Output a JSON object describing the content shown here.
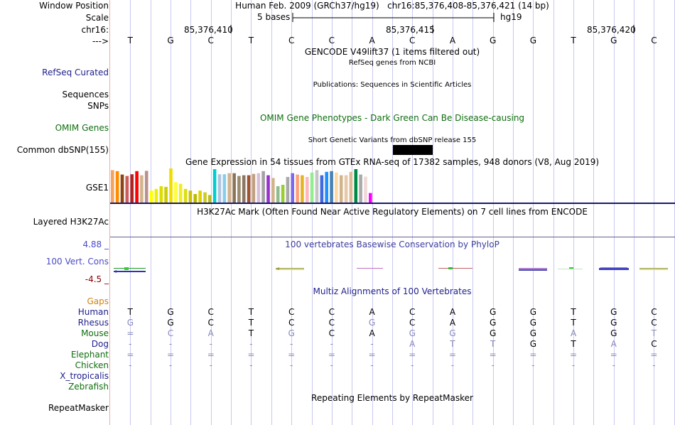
{
  "colors": {
    "label_blue": "#1e1e8c",
    "label_green": "#0f6e0f",
    "gaps_orange": "#d08010",
    "red_label": "#8b0000",
    "conservation_blue": "#4a4ac8",
    "rule_navy": "#191970",
    "grid_line": "#c8c8f0"
  },
  "header": {
    "window_position_label": "Window Position",
    "window_position_value": "Human Feb. 2009 (GRCh37/hg19)   chr16:85,376,408-85,376,421 (14 bp)",
    "scale_label": "Scale",
    "scale_value": "5 bases",
    "scale_db": "hg19",
    "chrom_label": "chr16:",
    "positions": [
      "85,376,410",
      "85,376,415",
      "85,376,420"
    ],
    "strand_label": "--->",
    "bases": [
      "T",
      "G",
      "C",
      "T",
      "C",
      "C",
      "A",
      "C",
      "A",
      "G",
      "G",
      "T",
      "G",
      "C"
    ]
  },
  "tracks": {
    "gencode_title": "GENCODE V49lift37 (1 items filtered out)",
    "refseq_label": "RefSeq Curated",
    "refseq_title": "RefSeq genes from NCBI",
    "sequences_label": "Sequences",
    "snps_label": "SNPs",
    "publications_title": "Publications: Sequences in Scientific Articles",
    "omim_title": "OMIM Gene Phenotypes - Dark Green Can Be Disease-causing",
    "omim_label": "OMIM Genes",
    "dbsnp_title": "Short Genetic Variants from dbSNP release 155",
    "dbsnp_label": "Common dbSNP(155)",
    "gtex_title": "Gene Expression in 54 tissues from GTEx RNA-seq of 17382 samples, 948 donors (V8, Aug 2019)",
    "gtex_label": "GSE1",
    "h3k27ac_title": "H3K27Ac Mark (Often Found Near Active Regulatory Elements) on 7 cell lines from ENCODE",
    "h3k27ac_label": "Layered H3K27Ac",
    "phylop_title": "100 vertebrates Basewise Conservation by PhyloP",
    "phylop_label": "100 Vert. Cons",
    "phylop_max": "4.88 _",
    "phylop_min": "-4.5 _",
    "multiz_title": "Multiz Alignments of 100 Vertebrates",
    "gaps_label": "Gaps",
    "repeat_title": "Repeating Elements by RepeatMasker",
    "repeat_label": "RepeatMasker"
  },
  "gtex_values": [
    0.95,
    0.92,
    0.82,
    0.78,
    0.83,
    0.92,
    0.8,
    0.93,
    0.35,
    0.4,
    0.48,
    0.46,
    1.0,
    0.6,
    0.55,
    0.4,
    0.35,
    0.25,
    0.35,
    0.3,
    0.22,
    0.98,
    0.83,
    0.83,
    0.86,
    0.86,
    0.78,
    0.8,
    0.8,
    0.84,
    0.86,
    0.92,
    0.8,
    0.72,
    0.48,
    0.52,
    0.75,
    0.86,
    0.82,
    0.8,
    0.75,
    0.88,
    0.95,
    0.8,
    0.9,
    0.92,
    0.88,
    0.8,
    0.8,
    0.9,
    0.98,
    0.82,
    0.76,
    0.28
  ],
  "gtex_colors": [
    "#f4a460",
    "#ff8c00",
    "#8b4513",
    "#cd5c5c",
    "#b22222",
    "#ff0000",
    "#d2b48c",
    "#bc8f8f",
    "#ffff00",
    "#eeee00",
    "#dddd00",
    "#cdcd00",
    "#eedd00",
    "#ffff33",
    "#eeee22",
    "#dddd11",
    "#ccc000",
    "#bbbb00",
    "#ddd000",
    "#cccc22",
    "#bbbb22",
    "#00ced1",
    "#b0c4de",
    "#87ceeb",
    "#d2b48c",
    "#8b7355",
    "#9c8b6e",
    "#8b7765",
    "#a0522d",
    "#c0a080",
    "#d8bfd8",
    "#a3a3a3",
    "#9932cc",
    "#d2b48c",
    "#8fbc8f",
    "#9acd32",
    "#a9a9a9",
    "#7b68ee",
    "#ffa07a",
    "#e6b422",
    "#ffb6c1",
    "#90ee90",
    "#c5c5c5",
    "#4169e1",
    "#1e90ff",
    "#4682b4",
    "#ffd7a0",
    "#d2b48c",
    "#e8c8a8",
    "#ddbb99",
    "#008b45",
    "#aaaaaa",
    "#f0d8d8",
    "#ff00ff"
  ],
  "alignment": {
    "species": [
      "Human",
      "Rhesus",
      "Mouse",
      "Dog",
      "Elephant",
      "Chicken",
      "X_tropicalis",
      "Zebrafish"
    ],
    "species_colors": [
      "#1e1e8c",
      "#1e1e8c",
      "#0f6e0f",
      "#1e1e8c",
      "#0f6e0f",
      "#0f6e0f",
      "#1e1e8c",
      "#0f6e0f"
    ],
    "rows": [
      [
        "T",
        "G",
        "C",
        "T",
        "C",
        "C",
        "A",
        "C",
        "A",
        "G",
        "G",
        "T",
        "G",
        "C"
      ],
      [
        "G",
        "G",
        "C",
        "T",
        "C",
        "C",
        "G",
        "C",
        "A",
        "G",
        "G",
        "T",
        "G",
        "C"
      ],
      [
        "=",
        "C",
        "A",
        "T",
        "G",
        "C",
        "A",
        "G",
        "G",
        "G",
        "G",
        "A",
        "G",
        "T"
      ],
      [
        "-",
        "-",
        "-",
        "-",
        "-",
        "-",
        "-",
        "A",
        "T",
        "T",
        "G",
        "T",
        "A",
        "C"
      ],
      [
        "=",
        "=",
        "=",
        "=",
        "=",
        "=",
        "=",
        "=",
        "=",
        "=",
        "=",
        "=",
        "=",
        "="
      ],
      [
        "-",
        "-",
        "-",
        "-",
        "-",
        "-",
        "-",
        "-",
        "-",
        "-",
        "-",
        "-",
        "-",
        "-"
      ],
      [],
      []
    ],
    "row_shades": [
      [
        "#000",
        "#000",
        "#000",
        "#000",
        "#000",
        "#000",
        "#000",
        "#000",
        "#000",
        "#000",
        "#000",
        "#000",
        "#000",
        "#000"
      ],
      [
        "#8888bb",
        "#000",
        "#000",
        "#000",
        "#000",
        "#000",
        "#8888bb",
        "#000",
        "#000",
        "#000",
        "#000",
        "#000",
        "#000",
        "#000"
      ],
      [
        "#8888bb",
        "#8888bb",
        "#8888bb",
        "#000",
        "#8888bb",
        "#000",
        "#000",
        "#8888bb",
        "#8888bb",
        "#000",
        "#000",
        "#8888bb",
        "#000",
        "#8888bb"
      ],
      [
        "#8888bb",
        "#8888bb",
        "#8888bb",
        "#8888bb",
        "#8888bb",
        "#8888bb",
        "#8888bb",
        "#8888bb",
        "#8888bb",
        "#8888bb",
        "#000",
        "#000",
        "#8888bb",
        "#000"
      ],
      [
        "#8888bb",
        "#8888bb",
        "#8888bb",
        "#8888bb",
        "#8888bb",
        "#8888bb",
        "#8888bb",
        "#8888bb",
        "#8888bb",
        "#8888bb",
        "#8888bb",
        "#8888bb",
        "#8888bb",
        "#8888bb"
      ],
      [
        "#8888bb",
        "#8888bb",
        "#8888bb",
        "#8888bb",
        "#8888bb",
        "#8888bb",
        "#8888bb",
        "#8888bb",
        "#8888bb",
        "#8888bb",
        "#8888bb",
        "#8888bb",
        "#8888bb",
        "#8888bb"
      ],
      [],
      []
    ]
  }
}
